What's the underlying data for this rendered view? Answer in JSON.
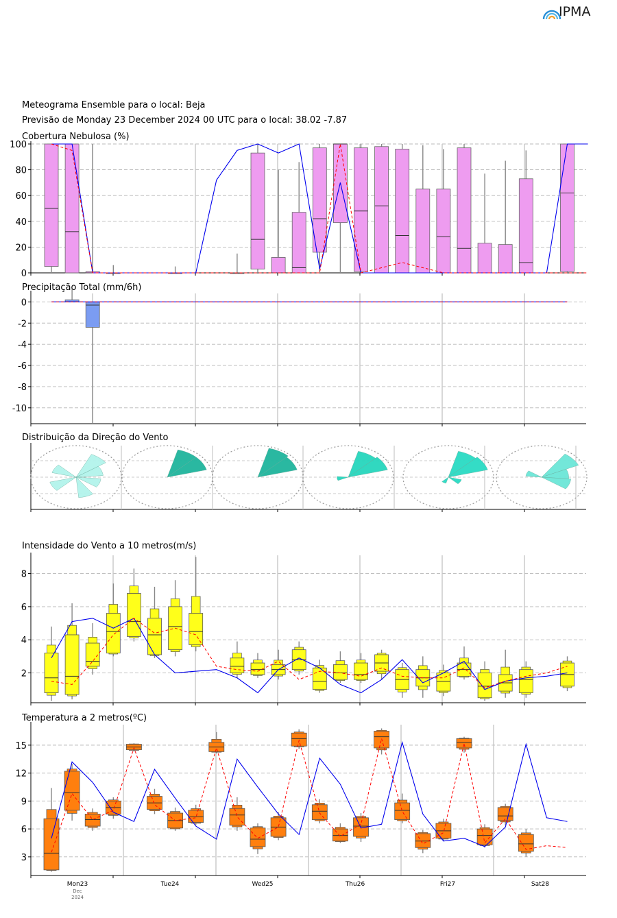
{
  "header": {
    "logo_text": "IPMA",
    "title": "Meteograma Ensemble para o local: Beja",
    "subtitle": "Previsão de Monday 23 December 2024 00 UTC para o local: 38.02 -7.87"
  },
  "colors": {
    "cloud_box": "#ee9cf0",
    "precip_box": "#7b9cf2",
    "wind_box": "#ffff1a",
    "temp_box": "#ff7f0e",
    "control_line": "#0000ee",
    "median_line": "#ff0000"
  },
  "chart_data": [
    {
      "type": "box",
      "title": "Cobertura Nebulosa (%)",
      "ylim": [
        0,
        100
      ],
      "yticks": [
        0,
        20,
        40,
        60,
        80,
        100
      ],
      "grid": true,
      "x_steps": [
        0,
        1,
        2,
        3,
        4,
        5,
        6,
        7,
        8,
        9,
        10,
        11,
        12,
        13,
        14,
        15,
        16,
        17,
        18,
        19,
        20,
        21,
        22,
        23,
        24,
        25,
        26
      ],
      "boxes": [
        {
          "i": 0,
          "wlo": 0,
          "q1": 5,
          "med": 50,
          "q3": 100,
          "whi": 100
        },
        {
          "i": 1,
          "wlo": 0,
          "q1": 0,
          "med": 32,
          "q3": 100,
          "whi": 100
        },
        {
          "i": 2,
          "wlo": 0,
          "q1": 0,
          "med": 0,
          "q3": 1,
          "whi": 100
        },
        {
          "i": 3,
          "wlo": 0,
          "q1": 0,
          "med": 0,
          "q3": 0,
          "whi": 6
        },
        {
          "i": 6,
          "wlo": 0,
          "q1": 0,
          "med": 0,
          "q3": 0,
          "whi": 5
        },
        {
          "i": 9,
          "wlo": 0,
          "q1": 0,
          "med": 0,
          "q3": 0,
          "whi": 15
        },
        {
          "i": 10,
          "wlo": 0,
          "q1": 3,
          "med": 26,
          "q3": 93,
          "whi": 100
        },
        {
          "i": 11,
          "wlo": 0,
          "q1": 0,
          "med": 0,
          "q3": 12,
          "whi": 80
        },
        {
          "i": 12,
          "wlo": 0,
          "q1": 0,
          "med": 4,
          "q3": 47,
          "whi": 86
        },
        {
          "i": 13,
          "wlo": 0,
          "q1": 16,
          "med": 42,
          "q3": 97,
          "whi": 100
        },
        {
          "i": 14,
          "wlo": 0,
          "q1": 39,
          "med": 100,
          "q3": 100,
          "whi": 100
        },
        {
          "i": 15,
          "wlo": 0,
          "q1": 1,
          "med": 48,
          "q3": 97,
          "whi": 100
        },
        {
          "i": 16,
          "wlo": 0,
          "q1": 0,
          "med": 52,
          "q3": 98,
          "whi": 100
        },
        {
          "i": 17,
          "wlo": 0,
          "q1": 0,
          "med": 29,
          "q3": 96,
          "whi": 100
        },
        {
          "i": 18,
          "wlo": 0,
          "q1": 0,
          "med": 0,
          "q3": 65,
          "whi": 99
        },
        {
          "i": 19,
          "wlo": 0,
          "q1": 0,
          "med": 28,
          "q3": 65,
          "whi": 96
        },
        {
          "i": 20,
          "wlo": 0,
          "q1": 0,
          "med": 19,
          "q3": 97,
          "whi": 100
        },
        {
          "i": 21,
          "wlo": 0,
          "q1": 0,
          "med": 0,
          "q3": 23,
          "whi": 77
        },
        {
          "i": 22,
          "wlo": 0,
          "q1": 0,
          "med": 0,
          "q3": 22,
          "whi": 87
        },
        {
          "i": 23,
          "wlo": 0,
          "q1": 0,
          "med": 8,
          "q3": 73,
          "whi": 95
        },
        {
          "i": 25,
          "wlo": 0,
          "q1": 1,
          "med": 62,
          "q3": 100,
          "whi": 100
        }
      ],
      "series": [
        {
          "name": "",
          "style": "control",
          "values": [
            100,
            100,
            0,
            0,
            0,
            0,
            0,
            0,
            72,
            95,
            100,
            93,
            100,
            3,
            70,
            0,
            0,
            0,
            0,
            0,
            0,
            0,
            0,
            0,
            0,
            100,
            100
          ]
        },
        {
          "name": "",
          "style": "median",
          "values": [
            100,
            95,
            0,
            0,
            0,
            0,
            0,
            0,
            0,
            0,
            0,
            0,
            0,
            0,
            100,
            0,
            4,
            8,
            4,
            0,
            0,
            0,
            0,
            0,
            0,
            0,
            0
          ]
        }
      ]
    },
    {
      "type": "box",
      "title": "Precipitação Total (mm/6h)",
      "ylim": [
        -11.5,
        0.8
      ],
      "yticks": [
        0,
        -2,
        -4,
        -6,
        -8,
        -10
      ],
      "grid": true,
      "boxes": [
        {
          "i": 1,
          "wlo": 0,
          "q1": 0,
          "med": 0,
          "q3": 0.2,
          "whi": 1.2
        },
        {
          "i": 2,
          "wlo": -11.5,
          "q1": -2.4,
          "med": -0.3,
          "q3": 0,
          "whi": 0
        }
      ],
      "series": [
        {
          "name": "",
          "style": "control",
          "values": [
            0,
            0,
            0,
            0,
            0,
            0,
            0,
            0,
            0,
            0,
            0,
            0,
            0,
            0,
            0,
            0,
            0,
            0,
            0,
            0,
            0,
            0,
            0,
            0,
            0,
            0
          ]
        },
        {
          "name": "",
          "style": "median",
          "values": [
            0,
            0,
            0,
            0,
            0,
            0,
            0,
            0,
            0,
            0,
            0,
            0,
            0,
            0,
            0,
            0,
            0,
            0,
            0,
            0,
            0,
            0,
            0,
            0,
            0,
            0
          ]
        }
      ]
    },
    {
      "type": "rose",
      "title": "Distribuição da Direção do Vento",
      "days": [
        {
          "day": "Mon23",
          "sectors": [
            {
              "dir": 300,
              "f": 0.55
            },
            {
              "dir": 40,
              "f": 0.8
            },
            {
              "dir": 70,
              "f": 0.6
            },
            {
              "dir": 110,
              "f": 0.55
            },
            {
              "dir": 160,
              "f": 0.65
            },
            {
              "dir": 240,
              "f": 0.6
            }
          ],
          "color": "#b3f4ec"
        },
        {
          "day": "Tue24",
          "sectors": [
            {
              "dir": 30,
              "f": 0.9
            },
            {
              "dir": 60,
              "f": 0.9
            }
          ],
          "color": "#1fb59d"
        },
        {
          "day": "Wed25",
          "sectors": [
            {
              "dir": 30,
              "f": 0.95
            },
            {
              "dir": 60,
              "f": 0.9
            }
          ],
          "color": "#1fb59d"
        },
        {
          "day": "Thu26",
          "sectors": [
            {
              "dir": 30,
              "f": 0.85
            },
            {
              "dir": 60,
              "f": 0.9
            },
            {
              "dir": 260,
              "f": 0.25
            }
          ],
          "color": "#27d6bd"
        },
        {
          "day": "Fri27",
          "sectors": [
            {
              "dir": 30,
              "f": 0.85
            },
            {
              "dir": 60,
              "f": 0.9
            },
            {
              "dir": 120,
              "f": 0.3
            },
            {
              "dir": 210,
              "f": 0.2
            }
          ],
          "color": "#2adbc4"
        },
        {
          "day": "Sat28",
          "sectors": [
            {
              "dir": 50,
              "f": 0.9
            },
            {
              "dir": 80,
              "f": 0.6
            },
            {
              "dir": 110,
              "f": 0.65
            },
            {
              "dir": 290,
              "f": 0.35
            }
          ],
          "color": "#6ce6d8"
        }
      ]
    },
    {
      "type": "box",
      "title": "Intensidade do Vento a 10 metros(m/s)",
      "ylim": [
        0.2,
        9.1
      ],
      "yticks": [
        2,
        4,
        6,
        8
      ],
      "grid": true,
      "boxes": [
        {
          "i": 0,
          "wlo": 0.3,
          "q1": 0.8,
          "med": 1.7,
          "q3": 3.2,
          "whi": 4.8
        },
        {
          "i": 1,
          "wlo": 0.4,
          "q1": 0.7,
          "med": 1.8,
          "q3": 4.3,
          "whi": 6.2
        },
        {
          "i": 2,
          "wlo": 1.9,
          "q1": 2.4,
          "med": 2.7,
          "q3": 3.8,
          "whi": 5.0
        },
        {
          "i": 3,
          "wlo": 3.0,
          "q1": 3.2,
          "med": 4.5,
          "q3": 5.6,
          "whi": 7.4
        },
        {
          "i": 4,
          "wlo": 3.9,
          "q1": 4.2,
          "med": 5.1,
          "q3": 6.8,
          "whi": 8.3
        },
        {
          "i": 5,
          "wlo": 2.9,
          "q1": 3.1,
          "med": 4.3,
          "q3": 5.3,
          "whi": 7.2
        },
        {
          "i": 6,
          "wlo": 3.0,
          "q1": 3.4,
          "med": 4.8,
          "q3": 6.0,
          "whi": 7.6
        },
        {
          "i": 7,
          "wlo": 3.3,
          "q1": 3.7,
          "med": 4.5,
          "q3": 5.6,
          "whi": 9.0
        },
        {
          "i": 9,
          "wlo": 1.7,
          "q1": 2.0,
          "med": 2.4,
          "q3": 2.9,
          "whi": 3.9
        },
        {
          "i": 10,
          "wlo": 1.7,
          "q1": 1.9,
          "med": 2.2,
          "q3": 2.6,
          "whi": 3.2
        },
        {
          "i": 11,
          "wlo": 1.6,
          "q1": 1.9,
          "med": 2.2,
          "q3": 2.5,
          "whi": 3.4
        },
        {
          "i": 12,
          "wlo": 1.9,
          "q1": 2.2,
          "med": 2.8,
          "q3": 3.4,
          "whi": 3.9
        },
        {
          "i": 13,
          "wlo": 0.8,
          "q1": 1.0,
          "med": 1.5,
          "q3": 2.3,
          "whi": 2.8
        },
        {
          "i": 14,
          "wlo": 1.4,
          "q1": 1.6,
          "med": 2.0,
          "q3": 2.5,
          "whi": 3.3
        },
        {
          "i": 15,
          "wlo": 1.4,
          "q1": 1.6,
          "med": 1.9,
          "q3": 2.6,
          "whi": 3.2
        },
        {
          "i": 16,
          "wlo": 1.6,
          "q1": 2.1,
          "med": 2.6,
          "q3": 3.1,
          "whi": 3.4
        },
        {
          "i": 17,
          "wlo": 0.5,
          "q1": 1.0,
          "med": 1.6,
          "q3": 2.2,
          "whi": 2.6
        },
        {
          "i": 18,
          "wlo": 0.5,
          "q1": 1.2,
          "med": 1.7,
          "q3": 2.2,
          "whi": 3.0
        },
        {
          "i": 19,
          "wlo": 0.6,
          "q1": 0.9,
          "med": 1.5,
          "q3": 2.0,
          "whi": 2.5
        },
        {
          "i": 20,
          "wlo": 1.6,
          "q1": 1.8,
          "med": 2.2,
          "q3": 2.6,
          "whi": 3.6
        },
        {
          "i": 21,
          "wlo": 0.3,
          "q1": 0.5,
          "med": 1.2,
          "q3": 2.0,
          "whi": 2.7
        },
        {
          "i": 22,
          "wlo": 0.5,
          "q1": 0.9,
          "med": 1.4,
          "q3": 1.9,
          "whi": 3.4
        },
        {
          "i": 23,
          "wlo": 0.5,
          "q1": 0.8,
          "med": 1.6,
          "q3": 2.2,
          "whi": 2.7
        },
        {
          "i": 25,
          "wlo": 0.9,
          "q1": 1.2,
          "med": 1.9,
          "q3": 2.6,
          "whi": 3.0
        }
      ],
      "series": [
        {
          "name": "",
          "style": "control",
          "values": [
            2.9,
            5.1,
            5.3,
            4.7,
            5.3,
            3.1,
            2.0,
            2.1,
            2.2,
            1.7,
            0.8,
            2.2,
            2.9,
            2.3,
            1.3,
            0.8,
            1.6,
            2.8,
            1.4,
            2.0,
            2.7,
            1.0,
            1.5,
            1.7,
            1.8,
            2.0
          ]
        },
        {
          "name": "",
          "style": "median",
          "values": [
            1.5,
            1.3,
            2.7,
            4.3,
            5.3,
            4.4,
            4.7,
            4.3,
            2.4,
            2.2,
            2.1,
            2.7,
            1.6,
            2.1,
            2.0,
            1.8,
            2.3,
            1.8,
            1.7,
            1.7,
            2.3,
            1.1,
            1.5,
            1.8,
            2.0,
            2.4
          ]
        }
      ]
    },
    {
      "type": "box",
      "title": "Temperatura a 2 metros(ºC)",
      "ylim": [
        1,
        17.2
      ],
      "yticks": [
        3,
        6,
        9,
        12,
        15
      ],
      "grid": true,
      "day_labels": [
        "Mon23",
        "Tue24",
        "Wed25",
        "Thu26",
        "Fri27",
        "Sat28"
      ],
      "month_label": "Dec",
      "year_label": "2024",
      "boxes": [
        {
          "i": 0,
          "wlo": 1.4,
          "q1": 1.6,
          "med": 3.4,
          "q3": 7.1,
          "whi": 10.4
        },
        {
          "i": 1,
          "wlo": 6.9,
          "q1": 8.0,
          "med": 9.9,
          "q3": 12.2,
          "whi": 13.0
        },
        {
          "i": 2,
          "wlo": 5.8,
          "q1": 6.3,
          "med": 7.0,
          "q3": 7.6,
          "whi": 8.2
        },
        {
          "i": 3,
          "wlo": 7.1,
          "q1": 7.6,
          "med": 8.3,
          "q3": 9.0,
          "whi": 9.4
        },
        {
          "i": 4,
          "wlo": 14.3,
          "q1": 14.5,
          "med": 14.8,
          "q3": 15.1,
          "whi": 15.2
        },
        {
          "i": 5,
          "wlo": 7.6,
          "q1": 8.1,
          "med": 8.8,
          "q3": 9.5,
          "whi": 10.3
        },
        {
          "i": 6,
          "wlo": 5.8,
          "q1": 6.1,
          "med": 6.9,
          "q3": 7.7,
          "whi": 8.3
        },
        {
          "i": 7,
          "wlo": 6.4,
          "q1": 6.7,
          "med": 7.3,
          "q3": 8.0,
          "whi": 8.6
        },
        {
          "i": 8,
          "wlo": 14.1,
          "q1": 14.3,
          "med": 14.8,
          "q3": 15.3,
          "whi": 16.4
        },
        {
          "i": 9,
          "wlo": 5.8,
          "q1": 6.4,
          "med": 7.5,
          "q3": 8.2,
          "whi": 9.4
        },
        {
          "i": 10,
          "wlo": 3.3,
          "q1": 4.1,
          "med": 4.9,
          "q3": 6.1,
          "whi": 6.6
        },
        {
          "i": 11,
          "wlo": 4.8,
          "q1": 5.2,
          "med": 6.2,
          "q3": 7.2,
          "whi": 7.8
        },
        {
          "i": 12,
          "wlo": 14.6,
          "q1": 14.9,
          "med": 15.7,
          "q3": 16.3,
          "whi": 16.7
        },
        {
          "i": 13,
          "wlo": 6.6,
          "q1": 7.0,
          "med": 7.9,
          "q3": 8.6,
          "whi": 9.2
        },
        {
          "i": 14,
          "wlo": 4.5,
          "q1": 4.7,
          "med": 5.3,
          "q3": 6.0,
          "whi": 6.6
        },
        {
          "i": 15,
          "wlo": 4.6,
          "q1": 5.2,
          "med": 6.3,
          "q3": 7.2,
          "whi": 7.7
        },
        {
          "i": 16,
          "wlo": 14.0,
          "q1": 14.7,
          "med": 15.9,
          "q3": 16.5,
          "whi": 16.8
        },
        {
          "i": 17,
          "wlo": 6.6,
          "q1": 7.0,
          "med": 8.0,
          "q3": 8.8,
          "whi": 9.8
        },
        {
          "i": 18,
          "wlo": 3.4,
          "q1": 4.0,
          "med": 4.7,
          "q3": 5.5,
          "whi": 5.9
        },
        {
          "i": 19,
          "wlo": 4.7,
          "q1": 5.0,
          "med": 5.8,
          "q3": 6.6,
          "whi": 7.1
        },
        {
          "i": 20,
          "wlo": 14.2,
          "q1": 14.7,
          "med": 15.3,
          "q3": 15.7,
          "whi": 15.9
        },
        {
          "i": 21,
          "wlo": 4.0,
          "q1": 4.3,
          "med": 5.3,
          "q3": 6.0,
          "whi": 6.5
        },
        {
          "i": 22,
          "wlo": 6.4,
          "q1": 6.9,
          "med": 7.4,
          "q3": 8.3,
          "whi": 8.7
        },
        {
          "i": 23,
          "wlo": 3.0,
          "q1": 3.6,
          "med": 4.4,
          "q3": 5.4,
          "whi": 6.0
        }
      ],
      "series": [
        {
          "name": "",
          "style": "control",
          "values": [
            5.0,
            13.2,
            11.0,
            7.8,
            6.8,
            12.4,
            9.3,
            6.3,
            4.9,
            13.5,
            10.5,
            7.6,
            5.4,
            13.6,
            10.8,
            6.1,
            6.5,
            15.3,
            7.6,
            4.7,
            5.0,
            4.1,
            6.2,
            15.1,
            7.2,
            6.8
          ]
        },
        {
          "name": "",
          "style": "median",
          "values": [
            3.5,
            9.8,
            7.0,
            8.0,
            14.7,
            8.6,
            6.9,
            7.2,
            14.7,
            7.3,
            5.0,
            6.2,
            15.5,
            7.7,
            5.2,
            6.5,
            15.7,
            7.9,
            4.4,
            5.6,
            15.2,
            4.5,
            7.1,
            3.8,
            4.2,
            4.0
          ]
        }
      ]
    }
  ]
}
